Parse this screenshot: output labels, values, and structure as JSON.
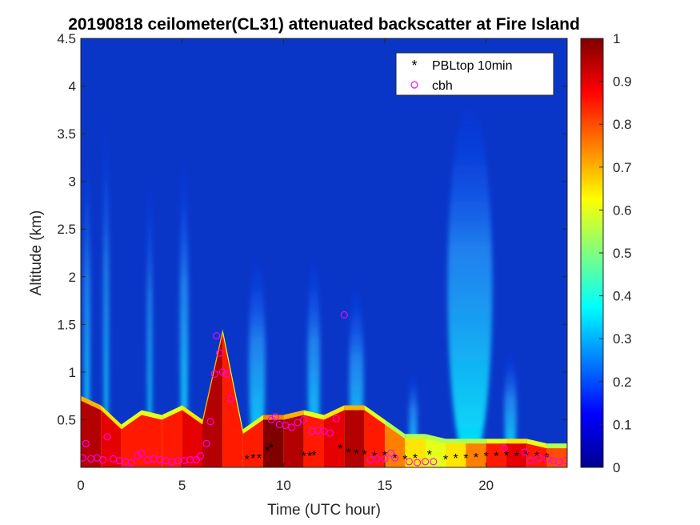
{
  "chart_data": {
    "type": "heatmap",
    "title": "20190818 ceilometer(CL31) attenuated backscatter at Fire Island",
    "xlabel": "Time (UTC hour)",
    "ylabel": "Altitude (km)",
    "xlim": [
      0,
      24
    ],
    "ylim": [
      0,
      4.5
    ],
    "clim": [
      0,
      1
    ],
    "colormap": "jet",
    "x_ticks": [
      "0",
      "5",
      "10",
      "15",
      "20"
    ],
    "y_ticks": [
      "0.5",
      "1",
      "1.5",
      "2",
      "2.5",
      "3",
      "3.5",
      "4",
      "4.5"
    ],
    "colorbar_ticks": [
      "0",
      "0.1",
      "0.2",
      "0.3",
      "0.4",
      "0.5",
      "0.6",
      "0.7",
      "0.8",
      "0.9",
      "1"
    ],
    "legend": {
      "location": "top-right",
      "entries": [
        {
          "label": "PBLtop 10min",
          "marker": "asterisk",
          "color": "#000000"
        },
        {
          "label": "cbh",
          "marker": "circle",
          "color": "#ff00ff"
        }
      ]
    },
    "surface_layer": [
      {
        "x": 0.0,
        "top": 0.7,
        "value": 0.9
      },
      {
        "x": 1.0,
        "top": 0.6,
        "value": 1.0
      },
      {
        "x": 2.0,
        "top": 0.4,
        "value": 0.8
      },
      {
        "x": 3.0,
        "top": 0.55,
        "value": 0.9
      },
      {
        "x": 4.0,
        "top": 0.5,
        "value": 0.8
      },
      {
        "x": 5.0,
        "top": 0.6,
        "value": 0.9
      },
      {
        "x": 6.0,
        "top": 0.45,
        "value": 0.9
      },
      {
        "x": 7.0,
        "top": 1.4,
        "value": 1.0
      },
      {
        "x": 8.0,
        "top": 0.35,
        "value": 0.7
      },
      {
        "x": 9.0,
        "top": 0.5,
        "value": 1.0
      },
      {
        "x": 10.0,
        "top": 0.5,
        "value": 1.0
      },
      {
        "x": 11.0,
        "top": 0.55,
        "value": 0.9
      },
      {
        "x": 12.0,
        "top": 0.5,
        "value": 0.8
      },
      {
        "x": 13.0,
        "top": 0.6,
        "value": 1.0
      },
      {
        "x": 14.0,
        "top": 0.6,
        "value": 0.9
      },
      {
        "x": 15.0,
        "top": 0.45,
        "value": 0.8
      },
      {
        "x": 16.0,
        "top": 0.3,
        "value": 0.7
      },
      {
        "x": 17.0,
        "top": 0.3,
        "value": 0.6
      },
      {
        "x": 18.0,
        "top": 0.25,
        "value": 0.6
      },
      {
        "x": 19.0,
        "top": 0.25,
        "value": 0.7
      },
      {
        "x": 20.0,
        "top": 0.25,
        "value": 0.8
      },
      {
        "x": 21.0,
        "top": 0.25,
        "value": 0.9
      },
      {
        "x": 22.0,
        "top": 0.25,
        "value": 0.9
      },
      {
        "x": 23.0,
        "top": 0.2,
        "value": 0.8
      },
      {
        "x": 24.0,
        "top": 0.2,
        "value": 0.8
      }
    ],
    "plumes": [
      {
        "x": 0.3,
        "width": 0.3,
        "top": 3.3,
        "value": 0.3
      },
      {
        "x": 1.25,
        "width": 0.25,
        "top": 3.6,
        "value": 0.35
      },
      {
        "x": 3.4,
        "width": 0.2,
        "top": 3.0,
        "value": 0.25
      },
      {
        "x": 5.1,
        "width": 0.4,
        "top": 3.2,
        "value": 0.25
      },
      {
        "x": 8.7,
        "width": 0.8,
        "top": 2.2,
        "value": 0.5
      },
      {
        "x": 11.5,
        "width": 0.6,
        "top": 2.2,
        "value": 0.45
      },
      {
        "x": 13.6,
        "width": 0.7,
        "top": 1.9,
        "value": 0.5
      },
      {
        "x": 16.4,
        "width": 0.4,
        "top": 1.0,
        "value": 0.35
      },
      {
        "x": 19.2,
        "width": 2.2,
        "top": 3.8,
        "value": 0.38
      },
      {
        "x": 21.2,
        "width": 0.6,
        "top": 1.2,
        "value": 0.3
      }
    ],
    "pbl_top": [
      {
        "x": 8.2,
        "y": 0.09
      },
      {
        "x": 8.5,
        "y": 0.1
      },
      {
        "x": 8.8,
        "y": 0.1
      },
      {
        "x": 9.2,
        "y": 0.18
      },
      {
        "x": 9.4,
        "y": 0.21
      },
      {
        "x": 11.0,
        "y": 0.12
      },
      {
        "x": 11.3,
        "y": 0.12
      },
      {
        "x": 11.5,
        "y": 0.13
      },
      {
        "x": 12.8,
        "y": 0.2
      },
      {
        "x": 13.2,
        "y": 0.16
      },
      {
        "x": 13.6,
        "y": 0.15
      },
      {
        "x": 14.0,
        "y": 0.14
      },
      {
        "x": 14.5,
        "y": 0.12
      },
      {
        "x": 15.0,
        "y": 0.13
      },
      {
        "x": 15.5,
        "y": 0.1
      },
      {
        "x": 16.0,
        "y": 0.09
      },
      {
        "x": 16.5,
        "y": 0.1
      },
      {
        "x": 17.2,
        "y": 0.14
      },
      {
        "x": 18.0,
        "y": 0.09
      },
      {
        "x": 18.5,
        "y": 0.1
      },
      {
        "x": 19.0,
        "y": 0.1
      },
      {
        "x": 19.5,
        "y": 0.11
      },
      {
        "x": 20.0,
        "y": 0.12
      },
      {
        "x": 20.5,
        "y": 0.12
      },
      {
        "x": 21.0,
        "y": 0.13
      },
      {
        "x": 21.5,
        "y": 0.12
      },
      {
        "x": 22.0,
        "y": 0.13
      },
      {
        "x": 22.5,
        "y": 0.12
      },
      {
        "x": 23.0,
        "y": 0.11
      }
    ],
    "cbh": [
      {
        "x": 0.1,
        "y": 0.1
      },
      {
        "x": 0.25,
        "y": 0.25
      },
      {
        "x": 0.5,
        "y": 0.09
      },
      {
        "x": 0.8,
        "y": 0.1
      },
      {
        "x": 1.1,
        "y": 0.08
      },
      {
        "x": 1.3,
        "y": 0.32
      },
      {
        "x": 1.6,
        "y": 0.09
      },
      {
        "x": 1.9,
        "y": 0.07
      },
      {
        "x": 2.2,
        "y": 0.06
      },
      {
        "x": 2.5,
        "y": 0.05
      },
      {
        "x": 2.8,
        "y": 0.12
      },
      {
        "x": 3.0,
        "y": 0.15
      },
      {
        "x": 3.3,
        "y": 0.08
      },
      {
        "x": 3.6,
        "y": 0.09
      },
      {
        "x": 3.9,
        "y": 0.08
      },
      {
        "x": 4.2,
        "y": 0.07
      },
      {
        "x": 4.5,
        "y": 0.06
      },
      {
        "x": 4.8,
        "y": 0.07
      },
      {
        "x": 5.1,
        "y": 0.07
      },
      {
        "x": 5.4,
        "y": 0.08
      },
      {
        "x": 5.7,
        "y": 0.08
      },
      {
        "x": 5.9,
        "y": 0.12
      },
      {
        "x": 6.2,
        "y": 0.25
      },
      {
        "x": 6.4,
        "y": 0.48
      },
      {
        "x": 6.6,
        "y": 0.98
      },
      {
        "x": 6.7,
        "y": 1.38
      },
      {
        "x": 6.85,
        "y": 1.2
      },
      {
        "x": 7.0,
        "y": 1.0
      },
      {
        "x": 7.2,
        "y": 0.98
      },
      {
        "x": 7.4,
        "y": 0.72
      },
      {
        "x": 9.4,
        "y": 0.5
      },
      {
        "x": 9.6,
        "y": 0.53
      },
      {
        "x": 9.8,
        "y": 0.45
      },
      {
        "x": 10.1,
        "y": 0.44
      },
      {
        "x": 10.4,
        "y": 0.42
      },
      {
        "x": 10.7,
        "y": 0.47
      },
      {
        "x": 11.0,
        "y": 0.5
      },
      {
        "x": 11.4,
        "y": 0.38
      },
      {
        "x": 11.7,
        "y": 0.39
      },
      {
        "x": 12.0,
        "y": 0.38
      },
      {
        "x": 12.3,
        "y": 0.36
      },
      {
        "x": 12.6,
        "y": 0.51
      },
      {
        "x": 13.0,
        "y": 1.6
      },
      {
        "x": 14.3,
        "y": 0.08
      },
      {
        "x": 14.6,
        "y": 0.09
      },
      {
        "x": 15.0,
        "y": 0.09
      },
      {
        "x": 15.3,
        "y": 0.15
      },
      {
        "x": 15.5,
        "y": 0.1
      },
      {
        "x": 16.2,
        "y": 0.06
      },
      {
        "x": 16.6,
        "y": 0.05
      },
      {
        "x": 17.0,
        "y": 0.06
      },
      {
        "x": 17.4,
        "y": 0.06
      },
      {
        "x": 20.9,
        "y": 0.2
      },
      {
        "x": 21.9,
        "y": 0.16
      },
      {
        "x": 22.2,
        "y": 0.07
      },
      {
        "x": 22.6,
        "y": 0.1
      },
      {
        "x": 23.0,
        "y": 0.09
      },
      {
        "x": 23.3,
        "y": 0.07
      },
      {
        "x": 23.6,
        "y": 0.06
      },
      {
        "x": 23.9,
        "y": 0.07
      }
    ]
  }
}
